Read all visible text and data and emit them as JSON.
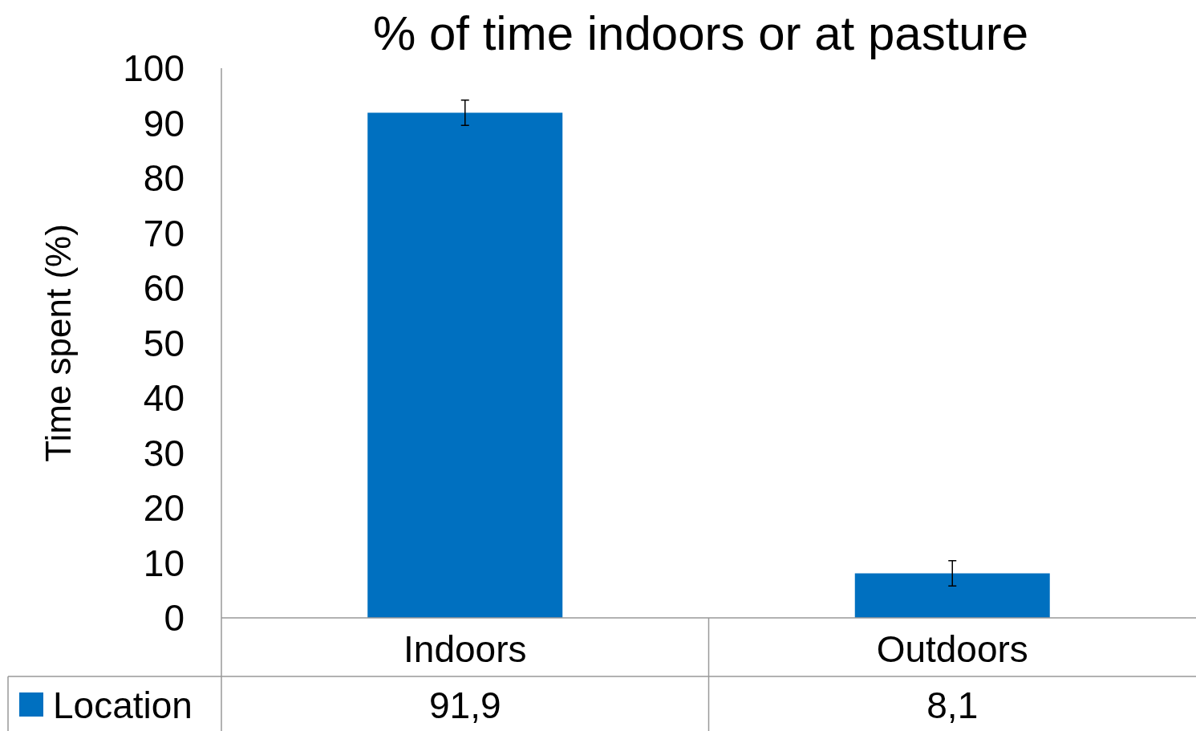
{
  "chart_data": {
    "type": "bar",
    "title": "% of time indoors or at pasture",
    "ylabel": "Time spent (%)",
    "categories": [
      "Indoors",
      "Outdoors"
    ],
    "series": [
      {
        "name": "Location",
        "color": "#0070c0",
        "values": [
          91.9,
          8.1
        ],
        "errors": [
          2.3,
          2.3
        ],
        "value_labels": [
          "91,9",
          "8,1"
        ]
      }
    ],
    "ylim": [
      0,
      100
    ],
    "yticks": [
      0,
      10,
      20,
      30,
      40,
      50,
      60,
      70,
      80,
      90,
      100
    ],
    "grid": false,
    "legend": "bottom"
  }
}
